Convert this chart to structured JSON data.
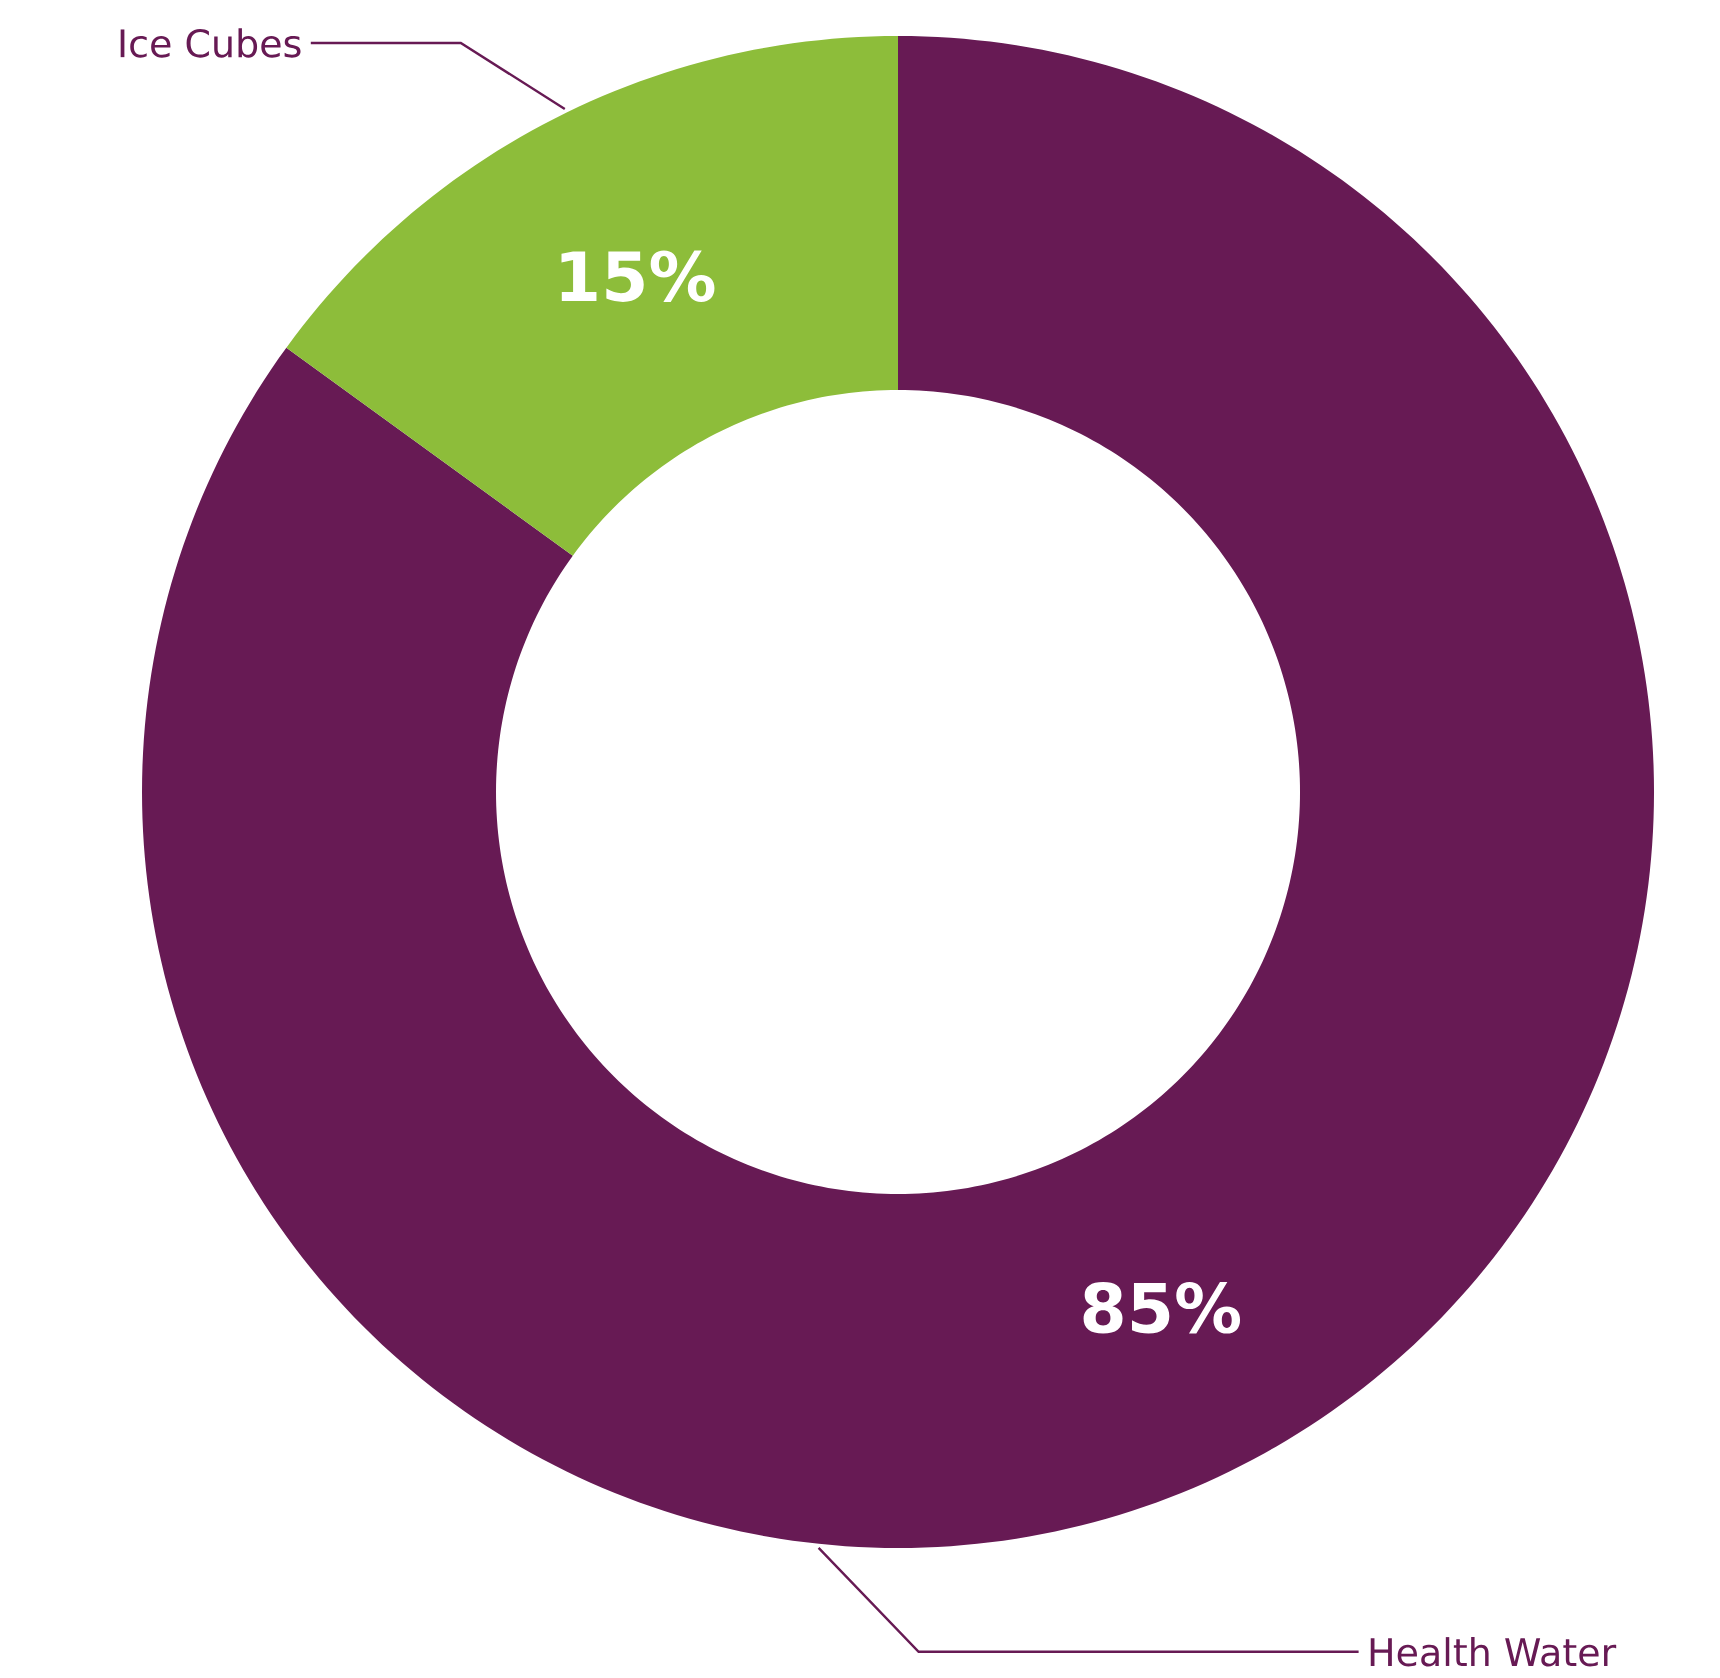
{
  "chart_data": {
    "type": "donut",
    "categories": [
      "Health Water",
      "Ice Cubes"
    ],
    "values": [
      85,
      15
    ],
    "colors": [
      "#671a54",
      "#8dbd3a"
    ],
    "data_labels": true,
    "value_labels": [
      "85%",
      "15%"
    ]
  }
}
